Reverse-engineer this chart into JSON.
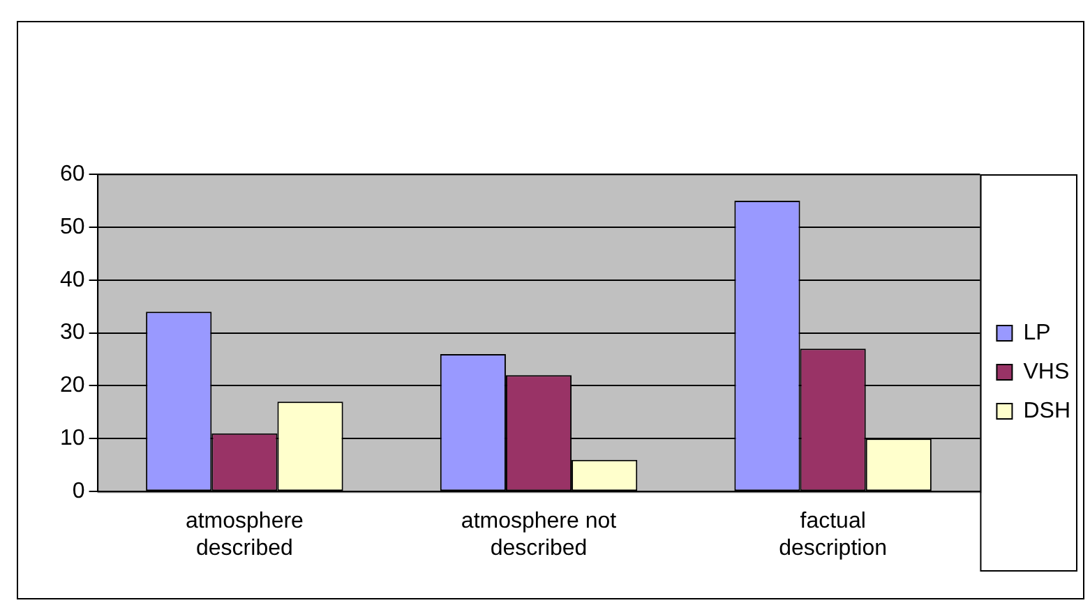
{
  "chart_data": {
    "type": "bar",
    "categories": [
      "atmosphere described",
      "atmosphere not described",
      "factual description"
    ],
    "series": [
      {
        "name": "LP",
        "color": "#9999ff",
        "values": [
          34,
          26,
          55
        ]
      },
      {
        "name": "VHS",
        "color": "#993366",
        "values": [
          11,
          22,
          27
        ]
      },
      {
        "name": "DSH",
        "color": "#ffffcc",
        "values": [
          17,
          6,
          10
        ]
      }
    ],
    "ylim": [
      0,
      60
    ],
    "yticks": [
      0,
      10,
      20,
      30,
      40,
      50,
      60
    ],
    "grid": "y",
    "legend": "right"
  }
}
